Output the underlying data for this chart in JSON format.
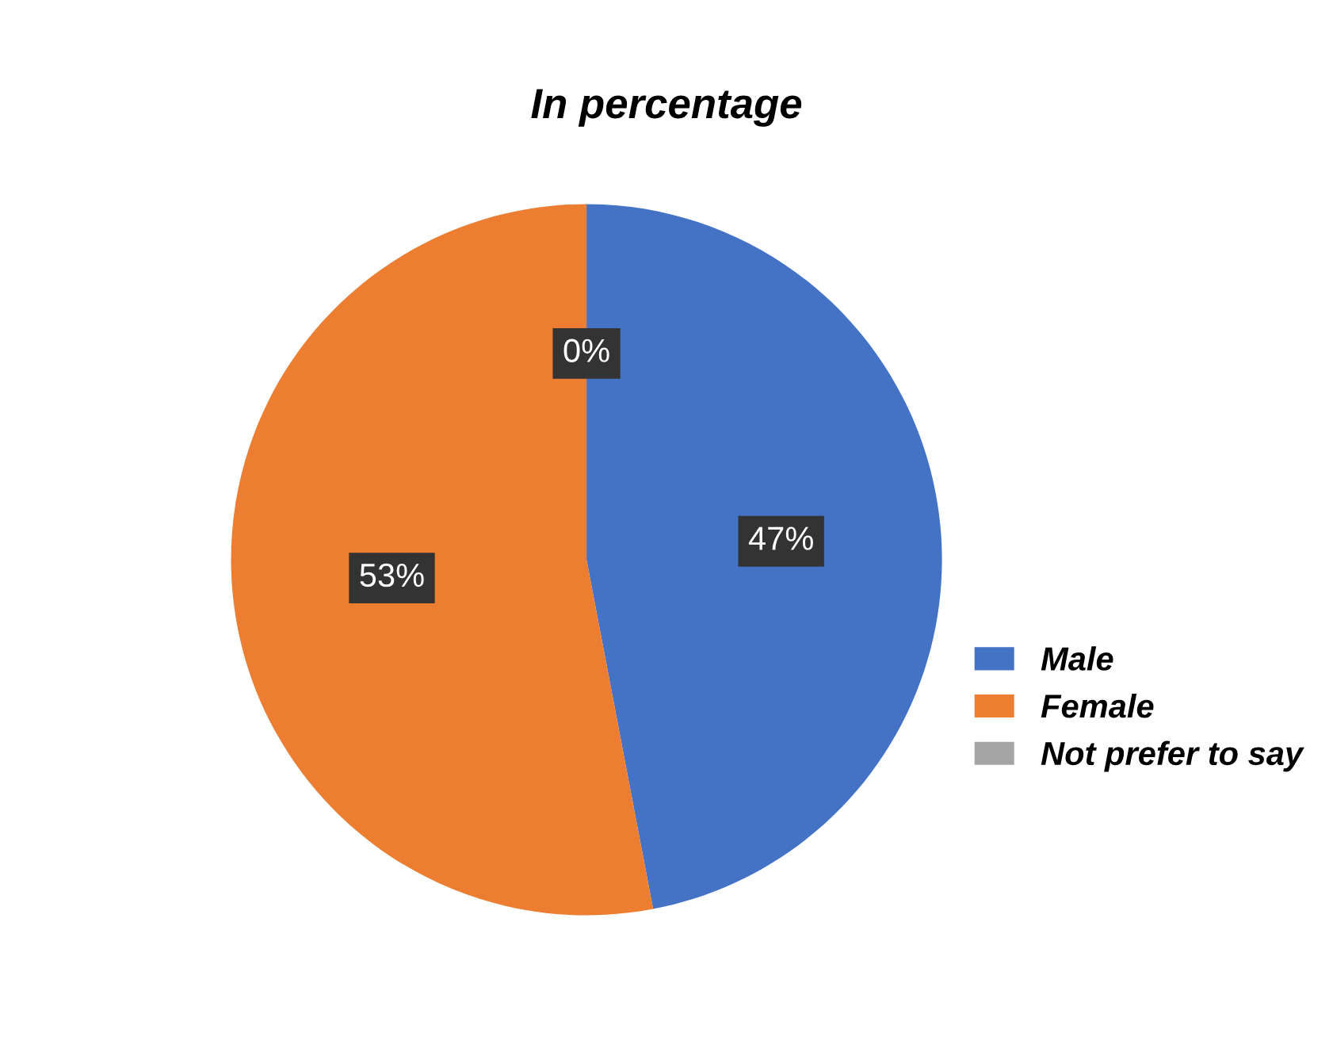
{
  "chart_data": {
    "type": "pie",
    "title": "In percentage",
    "categories": [
      "Male",
      "Female",
      "Not prefer to say"
    ],
    "values": [
      47,
      53,
      0
    ],
    "colors": [
      "#4472c4",
      "#ed7d31",
      "#a5a5a5"
    ],
    "value_labels": [
      "47%",
      "53%",
      "0%"
    ],
    "legend": "right"
  }
}
